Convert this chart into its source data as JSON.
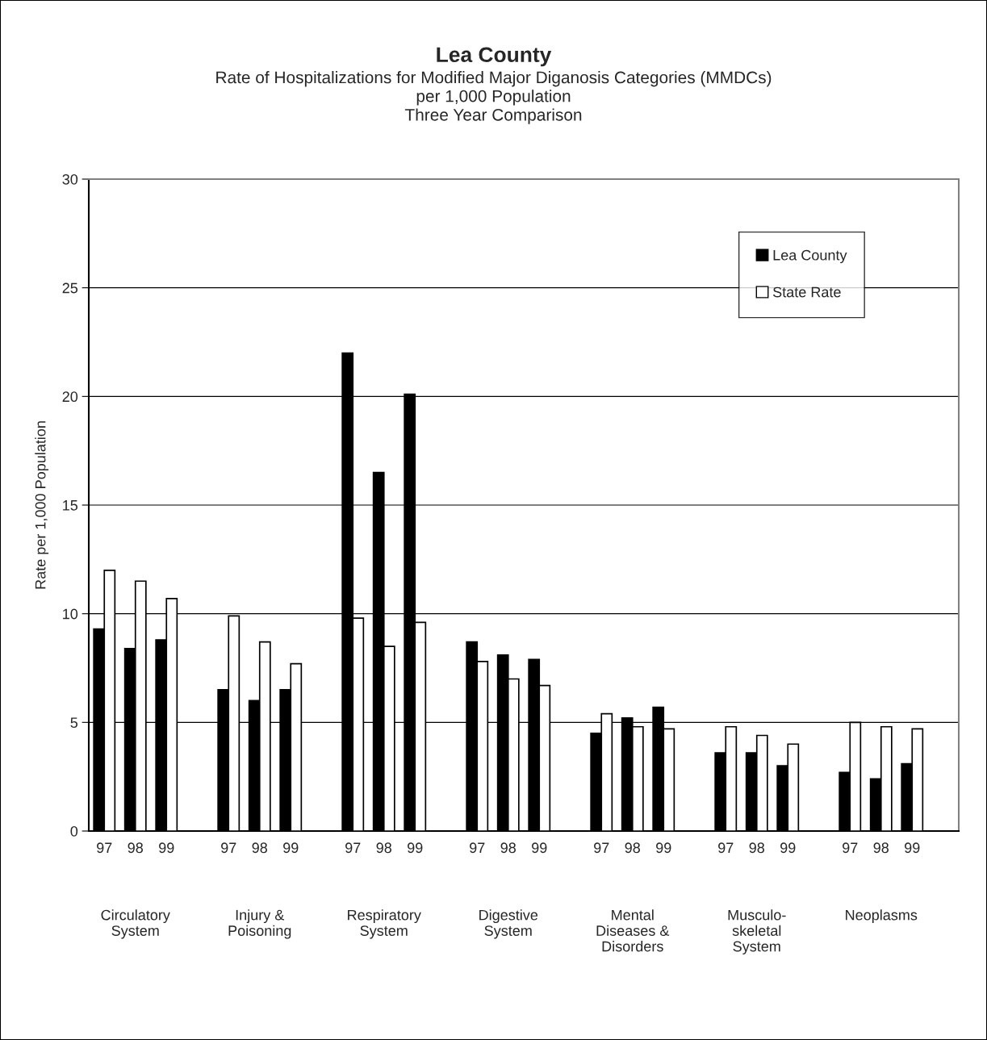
{
  "chart_data": {
    "type": "bar",
    "title": "Lea County",
    "subtitle": "Rate of Hospitalizations for Modified Major Diganosis Categories (MMDCs)\nper 1,000 Population\nThree Year Comparison",
    "ylabel": "Rate per 1,000 Population",
    "categories": [
      "97",
      "98",
      "99",
      null,
      "97",
      "98",
      "99",
      null,
      "97",
      "98",
      "99",
      null,
      "97",
      "98",
      "99",
      null,
      "97",
      "98",
      "99",
      null,
      "97",
      "98",
      "99",
      null,
      "97",
      "98",
      "99",
      null
    ],
    "series": [
      {
        "name": "Lea County",
        "color": "#000000",
        "values": [
          9.3,
          8.4,
          8.8,
          null,
          6.5,
          6.0,
          6.5,
          null,
          22.0,
          16.5,
          20.1,
          null,
          8.7,
          8.1,
          7.9,
          null,
          4.5,
          5.2,
          5.7,
          null,
          3.6,
          3.6,
          3.0,
          null,
          2.7,
          2.4,
          3.1,
          null
        ]
      },
      {
        "name": "State Rate",
        "color": "#ffffff",
        "values": [
          12.0,
          11.5,
          10.7,
          null,
          9.9,
          8.7,
          7.7,
          null,
          9.8,
          8.5,
          9.6,
          null,
          7.8,
          7.0,
          6.7,
          null,
          5.4,
          4.8,
          4.7,
          null,
          4.8,
          4.4,
          4.0,
          null,
          5.0,
          4.8,
          4.7,
          null
        ]
      }
    ],
    "annotations": [
      "Circulatory\nSystem",
      "Injury &\nPoisoning",
      "Respiratory\nSystem",
      "Digestive\nSystem",
      "Mental\nDiseases &\nDisorders",
      "Musculo-\nskeletal\nSystem",
      "Neoplasms"
    ],
    "ylim": [
      0,
      30
    ],
    "yticks": [
      0,
      5,
      10,
      15,
      20,
      25,
      30
    ],
    "grid": "y",
    "legend": "top right"
  }
}
